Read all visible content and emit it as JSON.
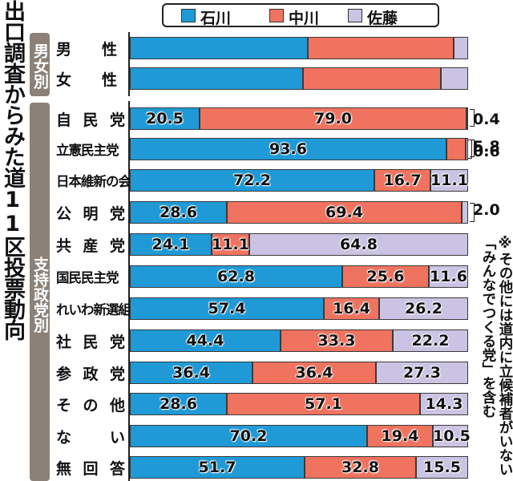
{
  "title": "出口調査からみた道11区投票動向",
  "legend": {
    "items": [
      {
        "label": "石川",
        "color": "#1f9ad6"
      },
      {
        "label": "中川",
        "color": "#f0735f"
      },
      {
        "label": "佐藤",
        "color": "#cbc3e3"
      }
    ]
  },
  "groups": [
    {
      "label": "男女別"
    },
    {
      "label": "支持政党別"
    }
  ],
  "note": "※その他には道内に立候補者がいない「みんなでつくる党」を含む",
  "chart_data": {
    "type": "bar",
    "stacked": true,
    "orientation": "horizontal",
    "xlim": [
      0,
      100
    ],
    "series": [
      {
        "name": "石川",
        "color": "#1f9ad6"
      },
      {
        "name": "中川",
        "color": "#f0735f"
      },
      {
        "name": "佐藤",
        "color": "#cbc3e3"
      }
    ],
    "rows": [
      {
        "label": "男　　性",
        "group": "男女別",
        "values": [
          52.5,
          43.3,
          4.2
        ],
        "labels": [
          "",
          "",
          ""
        ]
      },
      {
        "label": "女　　性",
        "group": "男女別",
        "values": [
          51.2,
          40.8,
          8.0
        ],
        "labels": [
          "",
          "",
          ""
        ]
      },
      {
        "label": "自民党",
        "group": "支持政党別",
        "values": [
          20.5,
          79.0,
          0.4
        ],
        "labels": [
          "20.5",
          "79.0",
          "0.4"
        ]
      },
      {
        "label": "立憲民主党",
        "group": "支持政党別",
        "values": [
          93.6,
          5.8,
          0.6
        ],
        "labels": [
          "93.6",
          "5.8",
          "0.6"
        ]
      },
      {
        "label": "日本維新の会",
        "group": "支持政党別",
        "values": [
          72.2,
          16.7,
          11.1
        ],
        "labels": [
          "72.2",
          "16.7",
          "11.1"
        ]
      },
      {
        "label": "公明党",
        "group": "支持政党別",
        "values": [
          28.6,
          69.4,
          2.0
        ],
        "labels": [
          "28.6",
          "69.4",
          "2.0"
        ]
      },
      {
        "label": "共産党",
        "group": "支持政党別",
        "values": [
          24.1,
          11.1,
          64.8
        ],
        "labels": [
          "24.1",
          "11.1",
          "64.8"
        ]
      },
      {
        "label": "国民民主党",
        "group": "支持政党別",
        "values": [
          62.8,
          25.6,
          11.6
        ],
        "labels": [
          "62.8",
          "25.6",
          "11.6"
        ]
      },
      {
        "label": "れいわ新選組",
        "group": "支持政党別",
        "values": [
          57.4,
          16.4,
          26.2
        ],
        "labels": [
          "57.4",
          "16.4",
          "26.2"
        ]
      },
      {
        "label": "社民党",
        "group": "支持政党別",
        "values": [
          44.4,
          33.3,
          22.2
        ],
        "labels": [
          "44.4",
          "33.3",
          "22.2"
        ]
      },
      {
        "label": "参政党",
        "group": "支持政党別",
        "values": [
          36.4,
          36.4,
          27.3
        ],
        "labels": [
          "36.4",
          "36.4",
          "27.3"
        ]
      },
      {
        "label": "その他",
        "group": "支持政党別",
        "values": [
          28.6,
          57.1,
          14.3
        ],
        "labels": [
          "28.6",
          "57.1",
          "14.3"
        ]
      },
      {
        "label": "ない",
        "group": "支持政党別",
        "values": [
          70.2,
          19.4,
          10.5
        ],
        "labels": [
          "70.2",
          "19.4",
          "10.5"
        ]
      },
      {
        "label": "無回答",
        "group": "支持政党別",
        "values": [
          51.7,
          32.8,
          15.5
        ],
        "labels": [
          "51.7",
          "32.8",
          "15.5"
        ]
      }
    ]
  }
}
